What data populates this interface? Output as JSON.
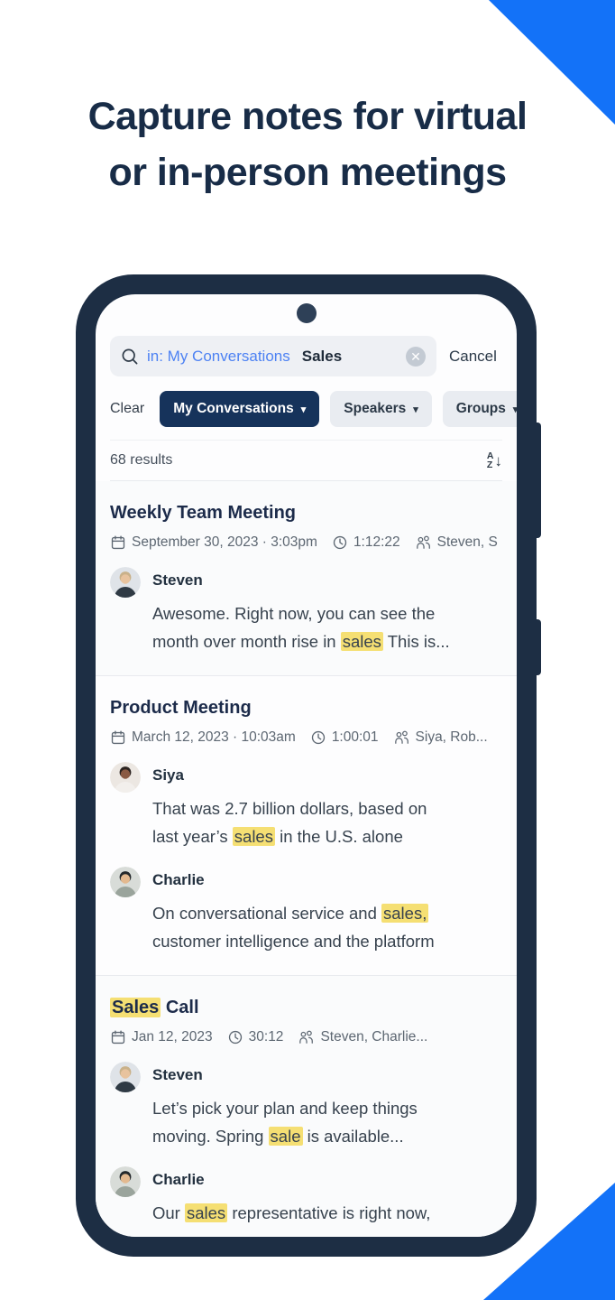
{
  "colors": {
    "accent_blue": "#1372f8",
    "navy": "#182c47",
    "phone_frame": "#1d2e44",
    "chip_navy": "#16335b",
    "highlight_yellow": "#f5df73"
  },
  "headline": {
    "line1": "Capture notes for virtual",
    "line2": "or in-person meetings"
  },
  "phone": {
    "search": {
      "icon": "search-icon",
      "operator": "in: My Conversations",
      "query": "Sales",
      "clear_icon": "close-icon",
      "clear_glyph": "✕",
      "cancel_label": "Cancel"
    },
    "filters": {
      "clear_label": "Clear",
      "caret": "▾",
      "chips": [
        {
          "label": "My Conversations",
          "active": true
        },
        {
          "label": "Speakers",
          "active": false
        },
        {
          "label": "Groups",
          "active": false
        }
      ]
    },
    "results_summary": {
      "count_label": "68 results",
      "sort_icon": "sort-az-icon",
      "sort_top": "A",
      "sort_bottom": "Z",
      "sort_arrow": "↓"
    },
    "results": [
      {
        "title_parts": [
          {
            "t": "Weekly Team Meeting",
            "h": false
          }
        ],
        "date": "September 30, 2023 · 3:03pm",
        "duration": "1:12:22",
        "speakers": "Steven, S",
        "entries": [
          {
            "speaker": "Steven",
            "avatar": "steven",
            "snippet": [
              {
                "t": "Awesome. Right now, you can see the\nmonth over month rise in ",
                "h": false
              },
              {
                "t": "sales",
                "h": true
              },
              {
                "t": " This is...",
                "h": false
              }
            ]
          }
        ]
      },
      {
        "title_parts": [
          {
            "t": "Product Meeting",
            "h": false
          }
        ],
        "date": "March 12, 2023 · 10:03am",
        "duration": "1:00:01",
        "speakers": "Siya, Rob...",
        "entries": [
          {
            "speaker": "Siya",
            "avatar": "siya",
            "snippet": [
              {
                "t": "That was 2.7 billion dollars, based on\nlast year’s ",
                "h": false
              },
              {
                "t": "sales",
                "h": true
              },
              {
                "t": " in the U.S. alone",
                "h": false
              }
            ]
          },
          {
            "speaker": "Charlie",
            "avatar": "charlie",
            "snippet": [
              {
                "t": "On conversational service and ",
                "h": false
              },
              {
                "t": "sales,",
                "h": true
              },
              {
                "t": "\ncustomer intelligence and the platform",
                "h": false
              }
            ]
          }
        ]
      },
      {
        "title_parts": [
          {
            "t": "Sales",
            "h": true
          },
          {
            "t": " Call",
            "h": false
          }
        ],
        "date": "Jan 12, 2023",
        "duration": "30:12",
        "speakers": "Steven, Charlie...",
        "entries": [
          {
            "speaker": "Steven",
            "avatar": "steven",
            "snippet": [
              {
                "t": "Let’s pick your plan and keep things\nmoving. Spring ",
                "h": false
              },
              {
                "t": "sale",
                "h": true
              },
              {
                "t": " is available...",
                "h": false
              }
            ]
          },
          {
            "speaker": "Charlie",
            "avatar": "charlie",
            "snippet": [
              {
                "t": "Our ",
                "h": false
              },
              {
                "t": "sales",
                "h": true
              },
              {
                "t": " representative is right now,",
                "h": false
              }
            ]
          }
        ]
      }
    ]
  },
  "avatars": {
    "steven": {
      "bg": "#dfe3e8",
      "hair": "#c9b18a",
      "skin": "#e8c39e",
      "shirt": "#2f3a44"
    },
    "siya": {
      "bg": "#ece7e2",
      "hair": "#2b2320",
      "skin": "#8a5a44",
      "shirt": "#f2efec"
    },
    "charlie": {
      "bg": "#d8dcd8",
      "hair": "#23282b",
      "skin": "#e3b98f",
      "shirt": "#9aa49c"
    }
  }
}
